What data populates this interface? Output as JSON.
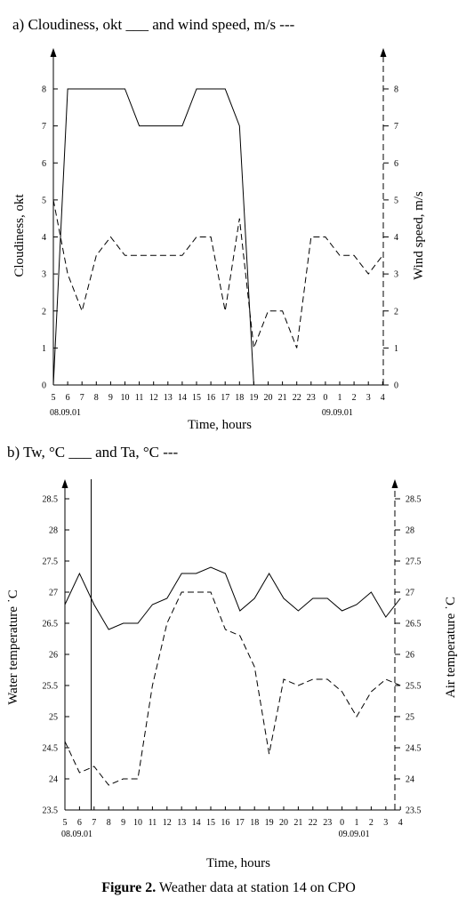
{
  "caption": {
    "label": "Figure 2.",
    "text": " Weather data at station 14 on CPO"
  },
  "chart_data": [
    {
      "type": "line",
      "title": "a) Cloudiness, okt ___ and wind speed, m/s ---",
      "xlabel": "Time, hours",
      "ylabel_left": "Cloudiness, okt",
      "ylabel_right": "Wind speed, m/s",
      "ylim_left": [
        0,
        8
      ],
      "ylim_right": [
        0,
        8
      ],
      "yticks_left": [
        "0",
        "1",
        "2",
        "3",
        "4",
        "5",
        "6",
        "7",
        "8"
      ],
      "yticks_right": [
        "0",
        "1",
        "2",
        "3",
        "4",
        "5",
        "6",
        "7",
        "8"
      ],
      "categories": [
        "5",
        "6",
        "7",
        "8",
        "9",
        "10",
        "11",
        "12",
        "13",
        "14",
        "15",
        "16",
        "17",
        "18",
        "19",
        "20",
        "21",
        "22",
        "23",
        "0",
        "1",
        "2",
        "3",
        "4"
      ],
      "date_labels": [
        {
          "text": "08.09.01",
          "index": 0
        },
        {
          "text": "09.09.01",
          "index": 19
        }
      ],
      "grid": false,
      "series": [
        {
          "name": "Cloudiness, okt",
          "axis": "left",
          "style": "solid",
          "points": [
            [
              0,
              0
            ],
            [
              1,
              8
            ],
            [
              2,
              8
            ],
            [
              3,
              8
            ],
            [
              4,
              8
            ],
            [
              5,
              8
            ],
            [
              6,
              7
            ],
            [
              7,
              7
            ],
            [
              8,
              7
            ],
            [
              9,
              7
            ],
            [
              10,
              8
            ],
            [
              11,
              8
            ],
            [
              12,
              8
            ],
            [
              13,
              7
            ],
            [
              14,
              0
            ]
          ]
        },
        {
          "name": "Wind speed, m/s",
          "axis": "right",
          "style": "dashed",
          "points": [
            [
              0,
              5
            ],
            [
              1,
              3
            ],
            [
              2,
              2
            ],
            [
              3,
              3.5
            ],
            [
              4,
              4
            ],
            [
              5,
              3.5
            ],
            [
              6,
              3.5
            ],
            [
              7,
              3.5
            ],
            [
              8,
              3.5
            ],
            [
              9,
              3.5
            ],
            [
              10,
              4
            ],
            [
              11,
              4
            ],
            [
              12,
              2
            ],
            [
              13,
              4.5
            ],
            [
              14,
              1
            ],
            [
              15,
              2
            ],
            [
              16,
              2
            ],
            [
              17,
              1
            ],
            [
              18,
              4
            ],
            [
              19,
              4
            ],
            [
              20,
              3.5
            ],
            [
              21,
              3.5
            ],
            [
              22,
              3
            ],
            [
              23,
              3.5
            ]
          ]
        }
      ]
    },
    {
      "type": "line",
      "title": "b) Tw, °C ___ and Ta, °C ---",
      "xlabel": "Time, hours",
      "ylabel_left": "Water temperature ˙C",
      "ylabel_right": "Air temperature ˙C",
      "ylim_left": [
        23.5,
        28.5
      ],
      "ylim_right": [
        23.5,
        28.5
      ],
      "yticks_left": [
        "23.5",
        "24",
        "24.5",
        "25",
        "25.5",
        "26",
        "26.5",
        "27",
        "27.5",
        "28",
        "28.5"
      ],
      "yticks_right": [
        "23.5",
        "24",
        "24.5",
        "25",
        "25.5",
        "26",
        "26.5",
        "27",
        "27.5",
        "28",
        "28.5"
      ],
      "categories": [
        "5",
        "6",
        "7",
        "8",
        "9",
        "10",
        "11",
        "12",
        "13",
        "14",
        "15",
        "16",
        "17",
        "18",
        "19",
        "20",
        "21",
        "22",
        "23",
        "0",
        "1",
        "2",
        "3",
        "4"
      ],
      "date_labels": [
        {
          "text": "08.09.01",
          "index": 0
        },
        {
          "text": "09.09.01",
          "index": 19
        }
      ],
      "vertical_marker_x": 1.8,
      "grid": false,
      "series": [
        {
          "name": "Tw, °C",
          "axis": "left",
          "style": "solid",
          "points": [
            [
              0,
              26.8
            ],
            [
              1,
              27.3
            ],
            [
              2,
              26.8
            ],
            [
              3,
              26.4
            ],
            [
              4,
              26.5
            ],
            [
              5,
              26.5
            ],
            [
              6,
              26.8
            ],
            [
              7,
              26.9
            ],
            [
              8,
              27.3
            ],
            [
              9,
              27.3
            ],
            [
              10,
              27.4
            ],
            [
              11,
              27.3
            ],
            [
              12,
              26.7
            ],
            [
              13,
              26.9
            ],
            [
              14,
              27.3
            ],
            [
              15,
              26.9
            ],
            [
              16,
              26.7
            ],
            [
              17,
              26.9
            ],
            [
              18,
              26.9
            ],
            [
              19,
              26.7
            ],
            [
              20,
              26.8
            ],
            [
              21,
              27.0
            ],
            [
              22,
              26.6
            ],
            [
              23,
              26.9
            ]
          ]
        },
        {
          "name": "Ta, °C",
          "axis": "right",
          "style": "dashed",
          "points": [
            [
              0,
              24.6
            ],
            [
              1,
              24.1
            ],
            [
              2,
              24.2
            ],
            [
              3,
              23.9
            ],
            [
              4,
              24.0
            ],
            [
              5,
              24.0
            ],
            [
              6,
              25.5
            ],
            [
              7,
              26.5
            ],
            [
              8,
              27.0
            ],
            [
              9,
              27.0
            ],
            [
              10,
              27.0
            ],
            [
              11,
              26.4
            ],
            [
              12,
              26.3
            ],
            [
              13,
              25.8
            ],
            [
              14,
              24.4
            ],
            [
              15,
              25.6
            ],
            [
              16,
              25.5
            ],
            [
              17,
              25.6
            ],
            [
              18,
              25.6
            ],
            [
              19,
              25.4
            ],
            [
              20,
              25.0
            ],
            [
              21,
              25.4
            ],
            [
              22,
              25.6
            ],
            [
              23,
              25.5
            ]
          ]
        }
      ]
    }
  ]
}
